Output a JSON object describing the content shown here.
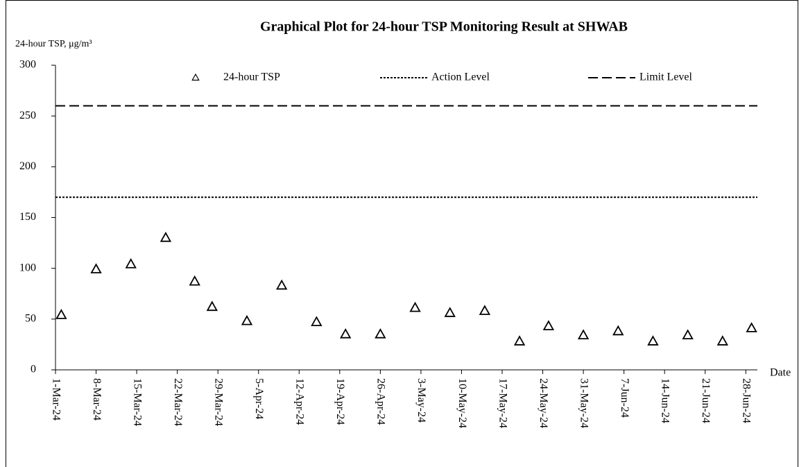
{
  "chart_data": {
    "type": "scatter",
    "title": "Graphical Plot for 24-hour TSP Monitoring Result at SHWAB",
    "y_label": "24-hour TSP, μg/m³",
    "x_label": "Date",
    "x": [
      "2024-03-02",
      "2024-03-08",
      "2024-03-14",
      "2024-03-20",
      "2024-03-25",
      "2024-03-28",
      "2024-04-03",
      "2024-04-09",
      "2024-04-15",
      "2024-04-20",
      "2024-04-26",
      "2024-05-02",
      "2024-05-08",
      "2024-05-14",
      "2024-05-20",
      "2024-05-25",
      "2024-05-31",
      "2024-06-06",
      "2024-06-12",
      "2024-06-18",
      "2024-06-24",
      "2024-06-29"
    ],
    "series": [
      {
        "name": "24-hour TSP",
        "color": "#000000",
        "marker": "triangle",
        "values": [
          54,
          99,
          104,
          130,
          87,
          62,
          48,
          83,
          47,
          35,
          35,
          61,
          56,
          58,
          28,
          43,
          34,
          38,
          28,
          34,
          28,
          41
        ]
      }
    ],
    "reference_lines": [
      {
        "name": "Action Level",
        "value": 170,
        "color": "#000000",
        "dash": "3,2"
      },
      {
        "name": "Limit Level",
        "value": 260,
        "color": "#000000",
        "dash": "14,6"
      }
    ],
    "xlim": [
      "2024-03-01",
      "2024-06-30"
    ],
    "xticks": [
      {
        "value": "2024-03-01",
        "label": "1-Mar-24"
      },
      {
        "value": "2024-03-08",
        "label": "8-Mar-24"
      },
      {
        "value": "2024-03-15",
        "label": "15-Mar-24"
      },
      {
        "value": "2024-03-22",
        "label": "22-Mar-24"
      },
      {
        "value": "2024-03-29",
        "label": "29-Mar-24"
      },
      {
        "value": "2024-04-05",
        "label": "5-Apr-24"
      },
      {
        "value": "2024-04-12",
        "label": "12-Apr-24"
      },
      {
        "value": "2024-04-19",
        "label": "19-Apr-24"
      },
      {
        "value": "2024-04-26",
        "label": "26-Apr-24"
      },
      {
        "value": "2024-05-03",
        "label": "3-May-24"
      },
      {
        "value": "2024-05-10",
        "label": "10-May-24"
      },
      {
        "value": "2024-05-17",
        "label": "17-May-24"
      },
      {
        "value": "2024-05-24",
        "label": "24-May-24"
      },
      {
        "value": "2024-05-31",
        "label": "31-May-24"
      },
      {
        "value": "2024-06-07",
        "label": "7-Jun-24"
      },
      {
        "value": "2024-06-14",
        "label": "14-Jun-24"
      },
      {
        "value": "2024-06-21",
        "label": "21-Jun-24"
      },
      {
        "value": "2024-06-28",
        "label": "28-Jun-24"
      }
    ],
    "ylim": [
      0,
      300
    ],
    "yticks": [
      0,
      50,
      100,
      150,
      200,
      250,
      300
    ],
    "legend": "top"
  }
}
